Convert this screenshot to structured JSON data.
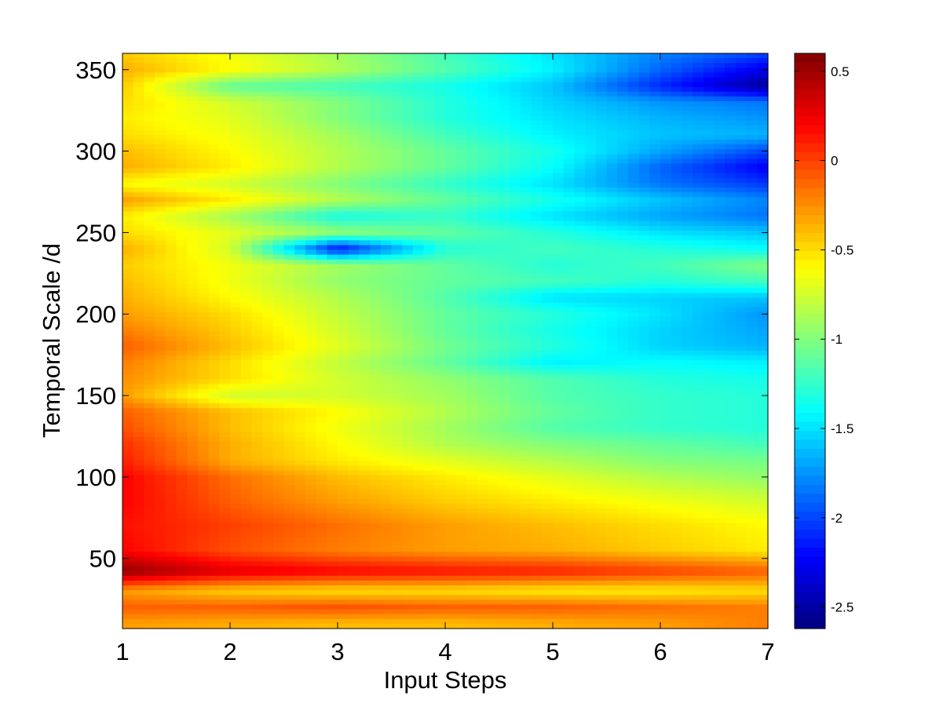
{
  "chart_data": {
    "type": "heatmap",
    "title": "",
    "xlabel": "Input Steps",
    "ylabel": "Temporal Scale /d",
    "xlim": [
      1,
      7
    ],
    "ylim": [
      7,
      360
    ],
    "xticks": [
      1,
      2,
      3,
      4,
      5,
      6,
      7
    ],
    "yticks": [
      50,
      100,
      150,
      200,
      250,
      300,
      350
    ],
    "colormap": "jet",
    "colorbar": {
      "range": [
        -2.62,
        0.6
      ],
      "ticks": [
        0.5,
        0,
        -0.5,
        -1,
        -1.5,
        -2,
        -2.5
      ],
      "tick_labels": [
        "0.5",
        "0",
        "-0.5",
        "-1",
        "-1.5",
        "-2",
        "-2.5"
      ]
    },
    "x": [
      1,
      2,
      3,
      4,
      5,
      6,
      7
    ],
    "y": [
      10,
      20,
      30,
      42,
      55,
      70,
      85,
      100,
      110,
      120,
      130,
      140,
      150,
      160,
      170,
      180,
      190,
      200,
      210,
      220,
      230,
      240,
      250,
      260,
      270,
      280,
      290,
      300,
      310,
      320,
      330,
      340,
      350,
      360
    ],
    "z": [
      [
        -0.3,
        -0.35,
        -0.4,
        -0.4,
        -0.35,
        -0.3,
        -0.2
      ],
      [
        -0.1,
        -0.1,
        -0.05,
        -0.1,
        -0.1,
        -0.15,
        -0.2
      ],
      [
        -0.3,
        -0.45,
        -0.5,
        -0.5,
        -0.55,
        -0.55,
        -0.5
      ],
      [
        0.55,
        0.3,
        0.2,
        0.15,
        0.1,
        0.0,
        -0.1
      ],
      [
        0.2,
        -0.05,
        -0.2,
        -0.3,
        -0.35,
        -0.45,
        -0.55
      ],
      [
        0.15,
        0.0,
        -0.15,
        -0.3,
        -0.4,
        -0.5,
        -0.6
      ],
      [
        0.2,
        -0.1,
        -0.3,
        -0.45,
        -0.55,
        -0.65,
        -0.75
      ],
      [
        0.2,
        -0.15,
        -0.4,
        -0.55,
        -0.7,
        -0.85,
        -0.95
      ],
      [
        0.1,
        -0.35,
        -0.55,
        -0.7,
        -0.85,
        -1.0,
        -1.05
      ],
      [
        0.05,
        -0.35,
        -0.6,
        -0.85,
        -1.0,
        -1.1,
        -1.2
      ],
      [
        -0.05,
        -0.4,
        -0.65,
        -0.9,
        -1.15,
        -1.25,
        -1.3
      ],
      [
        -0.1,
        -0.4,
        -0.6,
        -0.85,
        -1.1,
        -1.25,
        -1.3
      ],
      [
        -0.3,
        -0.75,
        -0.75,
        -0.9,
        -1.15,
        -1.25,
        -1.3
      ],
      [
        -0.25,
        -0.5,
        -0.75,
        -0.95,
        -1.15,
        -1.3,
        -1.35
      ],
      [
        -0.2,
        -0.5,
        -0.8,
        -1.1,
        -1.45,
        -1.4,
        -1.45
      ],
      [
        -0.1,
        -0.4,
        -0.7,
        -1.05,
        -1.3,
        -1.55,
        -1.65
      ],
      [
        -0.2,
        -0.45,
        -0.75,
        -1.1,
        -1.35,
        -1.55,
        -1.7
      ],
      [
        -0.3,
        -0.5,
        -0.8,
        -1.1,
        -1.3,
        -1.5,
        -1.75
      ],
      [
        -0.35,
        -0.6,
        -0.85,
        -1.15,
        -1.5,
        -1.55,
        -1.6
      ],
      [
        -0.4,
        -0.65,
        -0.95,
        -1.1,
        -1.2,
        -1.3,
        -1.2
      ],
      [
        -0.45,
        -0.65,
        -0.9,
        -1.1,
        -1.3,
        -1.2,
        -1.0
      ],
      [
        -0.35,
        -0.75,
        -2.2,
        -1.3,
        -1.2,
        -1.3,
        -1.4
      ],
      [
        -0.5,
        -0.7,
        -0.95,
        -1.1,
        -1.3,
        -1.5,
        -1.6
      ],
      [
        -0.55,
        -0.9,
        -1.35,
        -1.25,
        -1.5,
        -1.7,
        -1.85
      ],
      [
        -0.3,
        -0.55,
        -0.85,
        -1.1,
        -1.35,
        -1.6,
        -1.8
      ],
      [
        -0.6,
        -0.75,
        -1.0,
        -1.25,
        -1.5,
        -1.85,
        -2.05
      ],
      [
        -0.35,
        -0.55,
        -0.85,
        -1.1,
        -1.4,
        -1.9,
        -2.25
      ],
      [
        -0.4,
        -0.6,
        -0.85,
        -1.1,
        -1.35,
        -1.7,
        -2.0
      ],
      [
        -0.5,
        -0.65,
        -0.9,
        -1.2,
        -1.45,
        -1.6,
        -1.65
      ],
      [
        -0.55,
        -0.7,
        -1.0,
        -1.3,
        -1.5,
        -1.65,
        -1.75
      ],
      [
        -0.5,
        -0.75,
        -1.0,
        -1.3,
        -1.55,
        -1.75,
        -1.85
      ],
      [
        -0.45,
        -1.1,
        -1.2,
        -1.35,
        -1.6,
        -2.1,
        -2.55
      ],
      [
        -0.35,
        -0.6,
        -0.85,
        -1.15,
        -1.45,
        -1.9,
        -2.3
      ],
      [
        -0.45,
        -0.65,
        -0.9,
        -1.2,
        -1.5,
        -1.8,
        -2.0
      ]
    ]
  }
}
